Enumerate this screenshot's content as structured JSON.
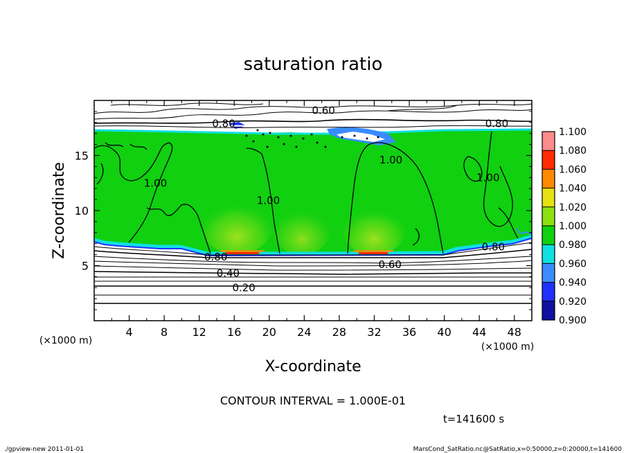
{
  "chart_data": {
    "type": "heatmap",
    "title": "saturation ratio",
    "xlabel": "X-coordinate",
    "ylabel": "Z-coordinate",
    "x_unit": "(×1000 m)",
    "y_unit": "(×1000 m)",
    "xlim": [
      0,
      50
    ],
    "ylim": [
      0,
      20
    ],
    "x_ticks": [
      4,
      8,
      12,
      16,
      20,
      24,
      28,
      32,
      36,
      40,
      44,
      48
    ],
    "y_ticks": [
      5,
      10,
      15
    ],
    "colorbar": {
      "levels": [
        0.9,
        0.92,
        0.94,
        0.96,
        0.98,
        1.0,
        1.02,
        1.04,
        1.06,
        1.08,
        1.1
      ],
      "labels": [
        "0.900",
        "0.920",
        "0.940",
        "0.960",
        "0.980",
        "1.000",
        "1.020",
        "1.040",
        "1.060",
        "1.080",
        "1.100"
      ],
      "colors": [
        "#7a1fb0",
        "#1010a0",
        "#2030ff",
        "#3a8cff",
        "#10e0e0",
        "#10d010",
        "#8ee010",
        "#e6e010",
        "#ff8a00",
        "#ff2a00",
        "#ff8a8a"
      ]
    },
    "contour_labels": [
      {
        "text": "0.60",
        "x": 26.2,
        "z": 19.1
      },
      {
        "text": "0.80",
        "x": 14.8,
        "z": 17.9
      },
      {
        "text": "0.80",
        "x": 46.0,
        "z": 17.9
      },
      {
        "text": "1.00",
        "x": 7.0,
        "z": 12.5
      },
      {
        "text": "1.00",
        "x": 19.9,
        "z": 10.9
      },
      {
        "text": "1.00",
        "x": 33.9,
        "z": 14.6
      },
      {
        "text": "1.00",
        "x": 45.0,
        "z": 13.0
      },
      {
        "text": "0.80",
        "x": 45.6,
        "z": 6.7
      },
      {
        "text": "0.80",
        "x": 13.9,
        "z": 5.8
      },
      {
        "text": "0.60",
        "x": 33.8,
        "z": 5.1
      },
      {
        "text": "0.40",
        "x": 15.3,
        "z": 4.3
      },
      {
        "text": "0.20",
        "x": 17.1,
        "z": 3.0
      }
    ],
    "contour_interval_text": "CONTOUR INTERVAL = 1.000E-01",
    "time_text": "t=141600 s"
  },
  "footer": {
    "left": "./gpview-new  2011-01-01",
    "right": "MarsCond_SatRatio.nc@SatRatio,x=0:50000,z=0:20000,t=141600"
  }
}
